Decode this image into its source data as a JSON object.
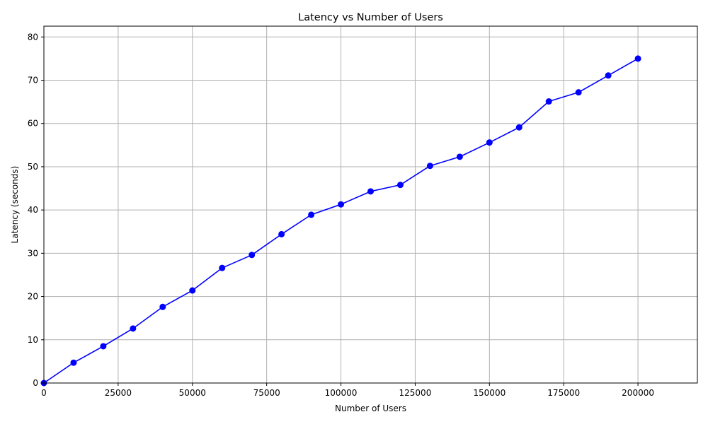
{
  "chart_data": {
    "type": "line",
    "title": "Latency vs Number of Users",
    "xlabel": "Number of Users",
    "ylabel": "Latency (seconds)",
    "xlim": [
      0,
      220000
    ],
    "ylim": [
      0,
      82.5
    ],
    "xticks": [
      0,
      25000,
      50000,
      75000,
      100000,
      125000,
      150000,
      175000,
      200000
    ],
    "yticks": [
      0,
      10,
      20,
      30,
      40,
      50,
      60,
      70,
      80
    ],
    "grid": true,
    "series": [
      {
        "color": "#0000ff",
        "marker": "circle",
        "x": [
          0,
          10000,
          20000,
          30000,
          40000,
          50000,
          60000,
          70000,
          80000,
          90000,
          100000,
          110000,
          120000,
          130000,
          140000,
          150000,
          160000,
          170000,
          180000,
          190000,
          200000
        ],
        "values": [
          0,
          4.7,
          8.5,
          12.6,
          17.6,
          21.4,
          26.6,
          29.6,
          34.4,
          38.9,
          41.3,
          44.3,
          45.8,
          50.2,
          52.3,
          55.6,
          59.1,
          65.1,
          67.2,
          71.1,
          75.0
        ]
      }
    ]
  }
}
